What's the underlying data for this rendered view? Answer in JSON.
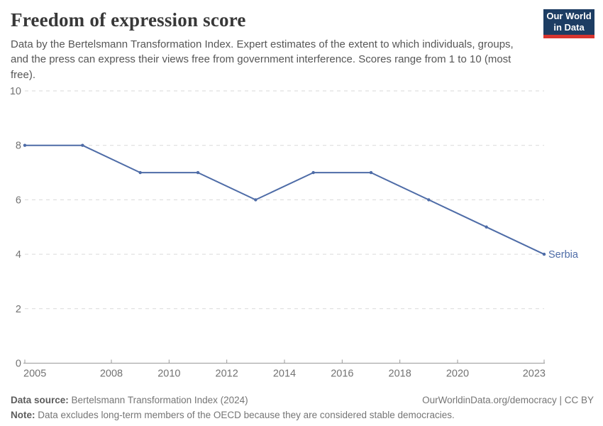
{
  "header": {
    "title": "Freedom of expression score",
    "subtitle": "Data by the Bertelsmann Transformation Index. Expert estimates of the extent to which individuals, groups, and the press can express their views free from government interference. Scores range from 1 to 10 (most free).",
    "logo": {
      "line1": "Our World",
      "line2": "in Data",
      "bg_color": "#1d3d63",
      "bar_color": "#d8352f"
    }
  },
  "chart_data": {
    "type": "line",
    "title": "Freedom of expression score",
    "x": [
      2005,
      2007,
      2009,
      2011,
      2013,
      2015,
      2017,
      2019,
      2021,
      2023
    ],
    "series": [
      {
        "name": "Serbia",
        "values": [
          8,
          8,
          7,
          7,
          6,
          7,
          7,
          6,
          5,
          4
        ],
        "color": "#4e6ca7"
      }
    ],
    "xlim": [
      2005,
      2023
    ],
    "ylim": [
      0,
      10
    ],
    "xticks": [
      2005,
      2008,
      2010,
      2012,
      2014,
      2016,
      2018,
      2020,
      2023
    ],
    "yticks": [
      0,
      2,
      4,
      6,
      8,
      10
    ],
    "grid": true,
    "legend_position": "end-of-line",
    "grid_color": "#dadada",
    "axis_color": "#999999",
    "tick_label_color": "#737373"
  },
  "footer": {
    "source_label": "Data source:",
    "source_text": " Bertelsmann Transformation Index (2024)",
    "link_text": "OurWorldinData.org/democracy | CC BY",
    "note_label": "Note:",
    "note_text": " Data excludes long-term members of the OECD because they are considered stable democracies."
  }
}
